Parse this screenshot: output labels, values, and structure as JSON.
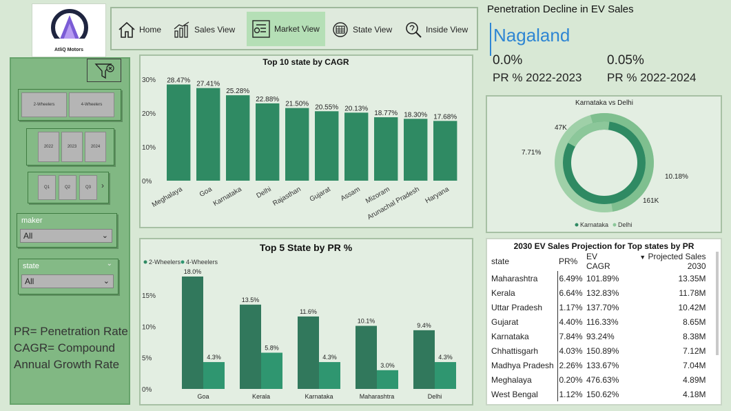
{
  "brand": {
    "name": "AtliQ Motors"
  },
  "nav": {
    "items": [
      {
        "label": "Home",
        "icon": "home-icon"
      },
      {
        "label": "Sales View",
        "icon": "sales-chart-icon"
      },
      {
        "label": "Market View",
        "icon": "market-icon",
        "active": true
      },
      {
        "label": "State View",
        "icon": "state-icon"
      },
      {
        "label": "Inside View",
        "icon": "insight-icon"
      }
    ]
  },
  "filters": {
    "vehicle": [
      "2-Wheelers",
      "4-Wheelers"
    ],
    "years": [
      "2022",
      "2023",
      "2024"
    ],
    "quarters": [
      "Q1",
      "Q2",
      "Q3"
    ],
    "maker": {
      "label": "maker",
      "value": "All"
    },
    "state": {
      "label": "state",
      "value": "All"
    }
  },
  "definitions": {
    "pr": "PR= Penetration Rate",
    "cagr": "CAGR= Compound Annual Growth Rate"
  },
  "kpi": {
    "title": "Penetration Decline in EV Sales",
    "state": "Nagaland",
    "pr_2023_value": "0.0%",
    "pr_2023_label": "PR % 2022-2023",
    "pr_2024_value": "0.05%",
    "pr_2024_label": "PR % 2022-2024"
  },
  "colors": {
    "bar_dark": "#2f8a63",
    "bar_mid": "#2f9670",
    "donut_light": "#7fbf8f",
    "accent": "#2f86d3"
  },
  "chart_data": [
    {
      "type": "bar",
      "title": "Top 10 state by CAGR",
      "categories": [
        "Meghalaya",
        "Goa",
        "Karnataka",
        "Delhi",
        "Rajasthan",
        "Gujarat",
        "Assam",
        "Mizoram",
        "Arunachal Pradesh",
        "Haryana"
      ],
      "values": [
        28.47,
        27.41,
        25.28,
        22.88,
        21.5,
        20.55,
        20.13,
        18.77,
        18.3,
        17.68
      ],
      "data_labels": [
        "28.47%",
        "27.41%",
        "25.28%",
        "22.88%",
        "21.50%",
        "20.55%",
        "20.13%",
        "18.77%",
        "18.30%",
        "17.68%"
      ],
      "yticks": [
        "0%",
        "10%",
        "20%",
        "30%"
      ],
      "ylim": [
        0,
        30
      ]
    },
    {
      "type": "bar",
      "title": "Top 5 State by PR %",
      "categories": [
        "Goa",
        "Kerala",
        "Karnataka",
        "Maharashtra",
        "Delhi"
      ],
      "series": [
        {
          "name": "2-Wheelers",
          "values": [
            18.0,
            13.5,
            11.6,
            10.1,
            9.4
          ],
          "labels": [
            "18.0%",
            "13.5%",
            "11.6%",
            "10.1%",
            "9.4%"
          ]
        },
        {
          "name": "4-Wheelers",
          "values": [
            4.3,
            5.8,
            4.3,
            3.0,
            4.3
          ],
          "labels": [
            "4.3%",
            "5.8%",
            "4.3%",
            "3.0%",
            "4.3%"
          ]
        }
      ],
      "yticks": [
        "0%",
        "5%",
        "10%",
        "15%"
      ],
      "ylim": [
        0,
        18
      ]
    },
    {
      "type": "pie",
      "title": "Karnataka vs Delhi",
      "rings": [
        {
          "name": "Karnataka",
          "slices": [
            {
              "label": "161K",
              "value": 161
            },
            {
              "label": "10.18%",
              "value": 10.18
            }
          ]
        },
        {
          "name": "Delhi",
          "slices": [
            {
              "label": "47K",
              "value": 47
            },
            {
              "label": "7.71%",
              "value": 7.71
            }
          ]
        }
      ],
      "legend": [
        "Karnataka",
        "Delhi"
      ]
    }
  ],
  "projection": {
    "title": "2030 EV Sales Projection for Top states by PR",
    "columns": [
      "state",
      "PR%",
      "EV CAGR",
      "Projected Sales 2030"
    ],
    "rows": [
      [
        "Maharashtra",
        "6.49%",
        "101.89%",
        "13.35M"
      ],
      [
        "Kerala",
        "6.64%",
        "132.83%",
        "11.78M"
      ],
      [
        "Uttar Pradesh",
        "1.17%",
        "137.70%",
        "10.42M"
      ],
      [
        "Gujarat",
        "4.40%",
        "116.33%",
        "8.65M"
      ],
      [
        "Karnataka",
        "7.84%",
        "93.24%",
        "8.38M"
      ],
      [
        "Chhattisgarh",
        "4.03%",
        "150.89%",
        "7.12M"
      ],
      [
        "Madhya Pradesh",
        "2.26%",
        "133.67%",
        "7.04M"
      ],
      [
        "Meghalaya",
        "0.20%",
        "476.63%",
        "4.89M"
      ],
      [
        "West Bengal",
        "1.12%",
        "150.62%",
        "4.18M"
      ]
    ]
  }
}
